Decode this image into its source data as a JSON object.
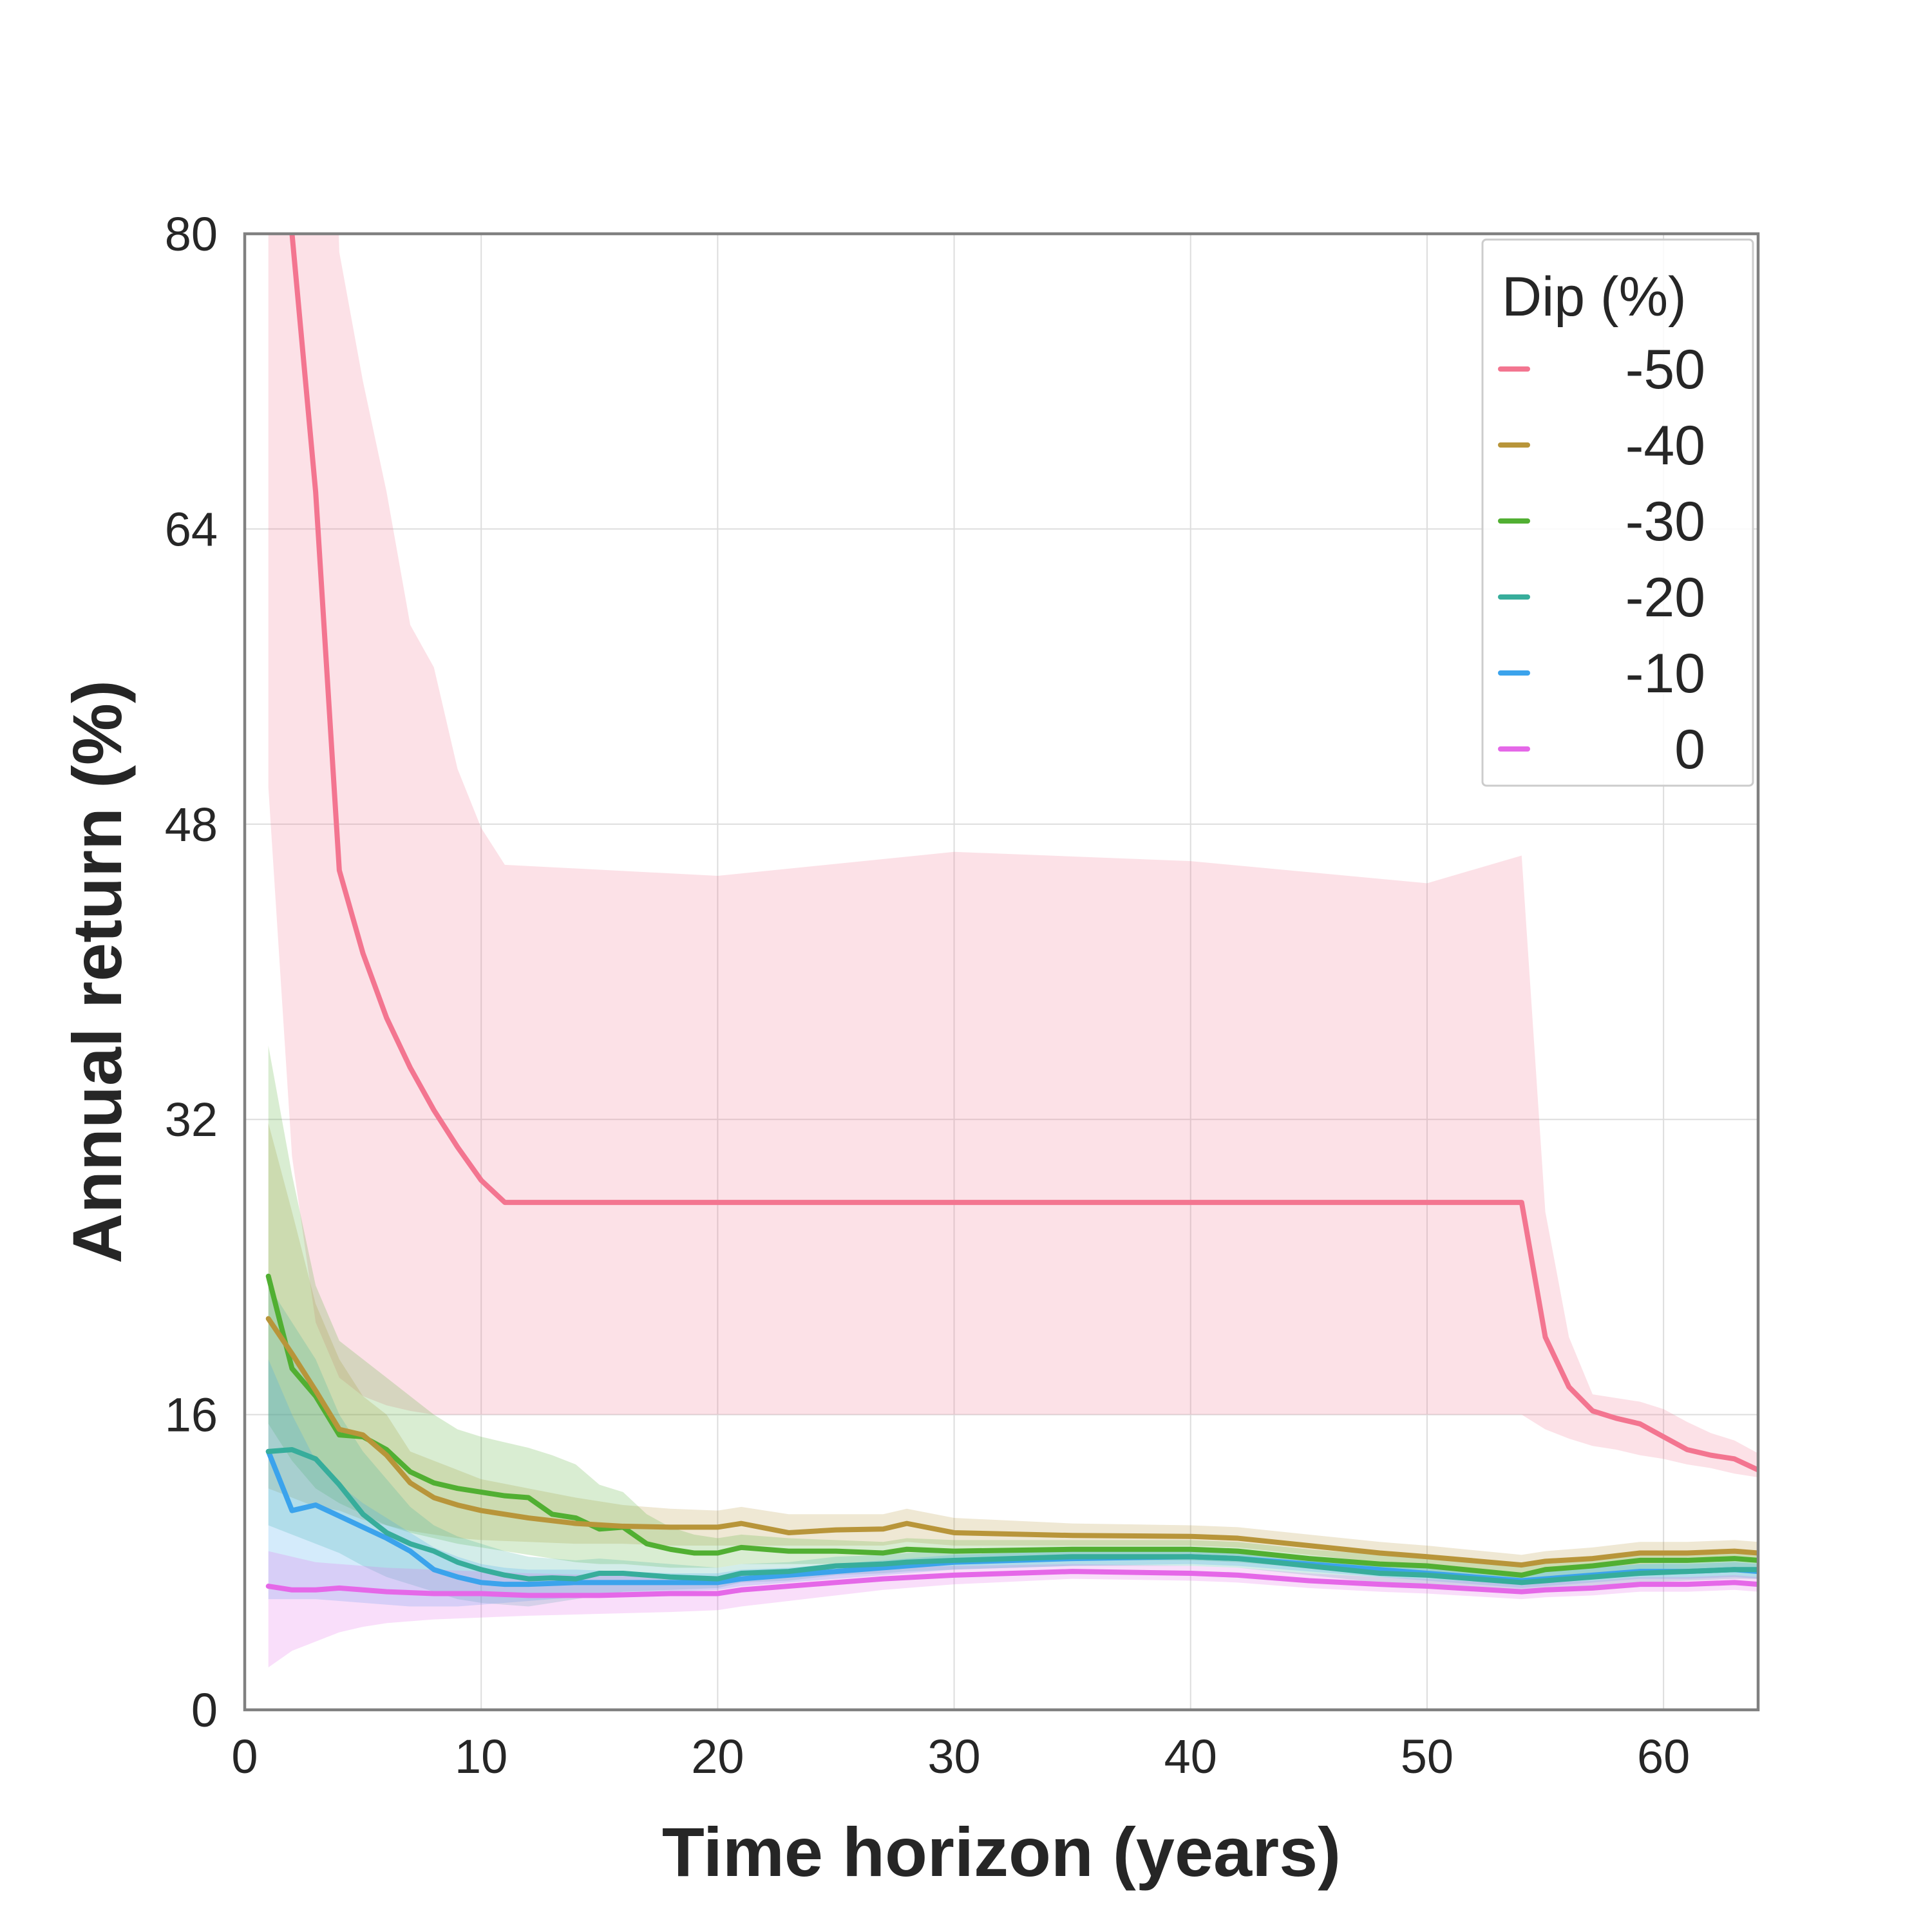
{
  "chart_data": {
    "type": "line",
    "title": "",
    "xlabel": "Time horizon (years)",
    "ylabel": "Annual return (%)",
    "xlim": [
      0,
      64
    ],
    "ylim": [
      0,
      80
    ],
    "xticks": [
      0,
      10,
      20,
      30,
      40,
      50,
      60
    ],
    "yticks": [
      0,
      16,
      32,
      48,
      64,
      80
    ],
    "grid": true,
    "legend": {
      "title": "Dip (%)",
      "placement": "top-right"
    },
    "series": [
      {
        "name": "-50",
        "color": "#f37590",
        "x": [
          1,
          2,
          3,
          4,
          5,
          6,
          7,
          8,
          9,
          10,
          11,
          20,
          30,
          40,
          50,
          54,
          55,
          56,
          57,
          58,
          59,
          60,
          61,
          62,
          63,
          64
        ],
        "y": [
          118,
          80,
          66,
          45.5,
          41,
          37.5,
          34.8,
          32.5,
          30.5,
          28.7,
          27.5,
          27.5,
          27.5,
          27.5,
          27.5,
          27.5,
          20.2,
          17.5,
          16.2,
          15.8,
          15.5,
          14.8,
          14.1,
          13.8,
          13.6,
          13.0
        ],
        "band_lower": [
          50,
          30,
          21,
          18,
          17,
          16.5,
          16.2,
          16,
          16,
          16,
          16,
          16,
          16,
          16,
          16,
          16,
          15.2,
          14.7,
          14.3,
          14.1,
          13.8,
          13.6,
          13.3,
          13.1,
          12.8,
          12.6
        ],
        "band_upper": [
          120,
          120,
          120,
          79,
          72,
          66,
          58.8,
          56.5,
          51,
          47.8,
          45.8,
          45.2,
          46.5,
          46,
          44.8,
          46.3,
          27,
          20.2,
          17.1,
          16.9,
          16.7,
          16.3,
          15.6,
          15.0,
          14.6,
          13.9
        ]
      },
      {
        "name": "-40",
        "color": "#b8953a",
        "x": [
          1,
          2,
          3,
          4,
          5,
          6,
          7,
          8,
          9,
          10,
          12,
          14,
          16,
          18,
          20,
          21,
          23,
          25,
          27,
          28,
          30,
          35,
          40,
          42,
          45,
          48,
          50,
          54,
          55,
          57,
          59,
          61,
          63,
          64
        ],
        "y": [
          21.2,
          19.3,
          17.3,
          15.2,
          14.9,
          13.8,
          12.3,
          11.5,
          11.1,
          10.8,
          10.4,
          10.1,
          9.95,
          9.9,
          9.9,
          10.1,
          9.6,
          9.75,
          9.8,
          10.1,
          9.6,
          9.45,
          9.4,
          9.3,
          8.9,
          8.5,
          8.3,
          7.85,
          8.05,
          8.2,
          8.5,
          8.5,
          8.6,
          8.5
        ],
        "band_lower": [
          12,
          11.5,
          11,
          10.8,
          10.3,
          10,
          9.7,
          9.5,
          9.3,
          9.2,
          9.1,
          9.0,
          9.0,
          8.9,
          8.9,
          8.9,
          8.9,
          8.9,
          8.9,
          9.1,
          8.9,
          8.9,
          8.9,
          8.8,
          8.4,
          8.0,
          7.8,
          7.3,
          7.5,
          7.7,
          7.9,
          8.0,
          8.1,
          8.0
        ],
        "band_upper": [
          31.8,
          27,
          22,
          19,
          17,
          16,
          14,
          13.5,
          13,
          12.5,
          12,
          11.5,
          11.1,
          10.9,
          10.8,
          11,
          10.6,
          10.6,
          10.6,
          10.9,
          10.4,
          10.1,
          10.0,
          9.9,
          9.5,
          9.1,
          8.9,
          8.4,
          8.6,
          8.8,
          9.1,
          9.1,
          9.2,
          9.1
        ]
      },
      {
        "name": "-30",
        "color": "#51af32",
        "x": [
          1,
          2,
          3,
          4,
          5,
          6,
          7,
          8,
          9,
          10,
          11,
          12,
          13,
          14,
          15,
          16,
          17,
          18,
          19,
          20,
          21,
          23,
          25,
          27,
          28,
          30,
          35,
          40,
          42,
          45,
          48,
          50,
          54,
          55,
          57,
          59,
          61,
          63,
          64
        ],
        "y": [
          23.5,
          18.5,
          17.0,
          14.9,
          14.8,
          14.1,
          12.9,
          12.3,
          12.0,
          11.8,
          11.6,
          11.5,
          10.6,
          10.4,
          9.8,
          9.9,
          9.0,
          8.7,
          8.5,
          8.5,
          8.8,
          8.6,
          8.6,
          8.5,
          8.7,
          8.6,
          8.7,
          8.7,
          8.6,
          8.2,
          7.9,
          7.8,
          7.3,
          7.6,
          7.8,
          8.1,
          8.1,
          8.2,
          8.1
        ],
        "band_lower": [
          15.5,
          13.5,
          12,
          11.2,
          10.6,
          10.0,
          9.6,
          9.3,
          9.0,
          8.8,
          8.6,
          8.4,
          8.2,
          8.0,
          7.9,
          7.9,
          7.8,
          7.7,
          7.7,
          7.7,
          7.9,
          7.9,
          7.9,
          7.9,
          8.0,
          8.0,
          8.1,
          8.1,
          8.0,
          7.7,
          7.4,
          7.3,
          6.8,
          7.0,
          7.3,
          7.5,
          7.6,
          7.7,
          7.6
        ],
        "band_upper": [
          36,
          29,
          23,
          20,
          19,
          18,
          17,
          16,
          15.2,
          14.8,
          14.5,
          14.2,
          13.8,
          13.3,
          12.2,
          11.8,
          10.6,
          9.9,
          9.5,
          9.3,
          9.5,
          9.3,
          9.2,
          9.1,
          9.3,
          9.2,
          9.2,
          9.2,
          9.1,
          8.7,
          8.4,
          8.3,
          7.8,
          8.1,
          8.3,
          8.6,
          8.6,
          8.7,
          8.6
        ]
      },
      {
        "name": "-20",
        "color": "#37ad9b",
        "x": [
          1,
          2,
          3,
          4,
          5,
          6,
          7,
          8,
          9,
          10,
          11,
          12,
          13,
          14,
          15,
          16,
          18,
          20,
          21,
          23,
          25,
          27,
          28,
          30,
          35,
          40,
          42,
          45,
          48,
          50,
          54,
          55,
          57,
          59,
          61,
          63,
          64
        ],
        "y": [
          14.0,
          14.1,
          13.6,
          12.2,
          10.6,
          9.6,
          9.0,
          8.6,
          8.0,
          7.6,
          7.3,
          7.1,
          7.15,
          7.1,
          7.4,
          7.4,
          7.2,
          7.1,
          7.4,
          7.5,
          7.8,
          7.9,
          8.0,
          8.1,
          8.3,
          8.3,
          8.2,
          7.8,
          7.4,
          7.3,
          6.9,
          7.0,
          7.2,
          7.4,
          7.5,
          7.6,
          7.6
        ],
        "band_lower": [
          10,
          9.5,
          9,
          8.5,
          7.8,
          7.2,
          6.8,
          6.4,
          6.0,
          5.8,
          5.7,
          5.6,
          5.8,
          6.0,
          6.2,
          6.4,
          6.5,
          6.6,
          6.9,
          7.0,
          7.3,
          7.4,
          7.5,
          7.6,
          7.8,
          7.8,
          7.7,
          7.3,
          6.9,
          6.8,
          6.4,
          6.5,
          6.7,
          6.9,
          7.0,
          7.1,
          7.1
        ],
        "band_upper": [
          23,
          21,
          19,
          16,
          14,
          12.5,
          11,
          10,
          9.4,
          9.0,
          8.6,
          8.3,
          8.2,
          8.1,
          8.2,
          8.1,
          7.9,
          7.7,
          7.9,
          8.0,
          8.3,
          8.4,
          8.5,
          8.6,
          8.8,
          8.8,
          8.7,
          8.3,
          7.9,
          7.8,
          7.4,
          7.5,
          7.7,
          7.9,
          8.0,
          8.1,
          8.1
        ]
      },
      {
        "name": "-10",
        "color": "#3ba3ec",
        "x": [
          1,
          2,
          3,
          4,
          5,
          6,
          7,
          8,
          9,
          10,
          11,
          12,
          14,
          16,
          18,
          20,
          21,
          23,
          25,
          27,
          28,
          30,
          35,
          40,
          42,
          45,
          48,
          50,
          54,
          55,
          57,
          59,
          61,
          63,
          64
        ],
        "y": [
          14.0,
          10.8,
          11.1,
          10.5,
          9.9,
          9.3,
          8.6,
          7.6,
          7.2,
          6.9,
          6.8,
          6.8,
          6.9,
          6.9,
          6.9,
          6.9,
          7.1,
          7.3,
          7.5,
          7.7,
          7.8,
          8.0,
          8.2,
          8.3,
          8.2,
          7.9,
          7.6,
          7.4,
          7.0,
          7.1,
          7.3,
          7.5,
          7.5,
          7.6,
          7.5
        ],
        "band_lower": [
          6,
          6,
          6,
          5.9,
          5.8,
          5.7,
          5.6,
          5.6,
          5.6,
          5.7,
          5.8,
          5.9,
          6.1,
          6.3,
          6.4,
          6.5,
          6.7,
          6.9,
          7.1,
          7.3,
          7.4,
          7.6,
          7.8,
          7.9,
          7.8,
          7.5,
          7.2,
          7.0,
          6.6,
          6.7,
          6.9,
          7.1,
          7.1,
          7.2,
          7.1
        ],
        "band_upper": [
          19,
          16,
          13.5,
          12.2,
          11.2,
          10.4,
          9.6,
          8.8,
          8.3,
          7.9,
          7.7,
          7.6,
          7.6,
          7.5,
          7.4,
          7.4,
          7.6,
          7.7,
          7.9,
          8.1,
          8.2,
          8.4,
          8.6,
          8.7,
          8.6,
          8.3,
          8.0,
          7.8,
          7.4,
          7.5,
          7.7,
          7.9,
          7.9,
          8.0,
          7.9
        ]
      },
      {
        "name": "0",
        "color": "#e568e8",
        "x": [
          1,
          2,
          3,
          4,
          5,
          6,
          8,
          10,
          12,
          15,
          18,
          20,
          21,
          23,
          25,
          27,
          30,
          35,
          40,
          42,
          45,
          48,
          50,
          54,
          55,
          57,
          59,
          61,
          63,
          64
        ],
        "y": [
          6.7,
          6.5,
          6.5,
          6.6,
          6.5,
          6.4,
          6.3,
          6.3,
          6.2,
          6.2,
          6.3,
          6.3,
          6.5,
          6.7,
          6.9,
          7.1,
          7.3,
          7.5,
          7.4,
          7.3,
          7.0,
          6.8,
          6.7,
          6.4,
          6.5,
          6.6,
          6.8,
          6.8,
          6.9,
          6.8
        ],
        "band_lower": [
          2.3,
          3.2,
          3.7,
          4.2,
          4.5,
          4.7,
          4.9,
          5.0,
          5.1,
          5.2,
          5.3,
          5.4,
          5.6,
          5.9,
          6.2,
          6.5,
          6.8,
          7.1,
          7.0,
          6.9,
          6.6,
          6.4,
          6.3,
          6.0,
          6.1,
          6.2,
          6.4,
          6.4,
          6.5,
          6.4
        ],
        "band_upper": [
          8.6,
          8.3,
          8.0,
          7.9,
          7.8,
          7.7,
          7.6,
          7.5,
          7.4,
          7.3,
          7.2,
          7.2,
          7.3,
          7.5,
          7.6,
          7.7,
          7.8,
          7.9,
          7.8,
          7.7,
          7.4,
          7.2,
          7.1,
          6.8,
          6.9,
          7.0,
          7.2,
          7.2,
          7.3,
          7.2
        ]
      }
    ]
  }
}
